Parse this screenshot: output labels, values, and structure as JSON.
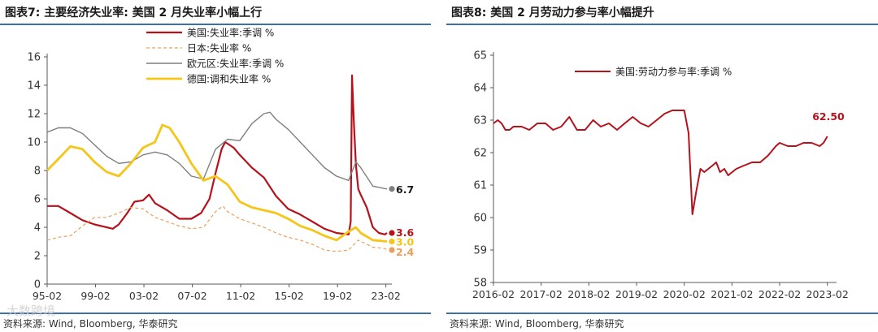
{
  "panels": {
    "left": {
      "title": "图表7:  主要经济失业率: 美国 2 月失业率小幅上行",
      "source": "资料来源: Wind, Bloomberg, 华泰研究"
    },
    "right": {
      "title": "图表8:  美国 2 月劳动力参与率小幅提升",
      "source": "资料来源: Wind, Bloomberg, 华泰研究"
    }
  },
  "watermark": "大数跨境",
  "colors": {
    "accent_rule": "#3d6fa8",
    "us": "#b5121b",
    "japan": "#e8a05c",
    "euro": "#7f7f7f",
    "germany": "#f5c518",
    "axis": "#595959",
    "title": "#1a1a1a"
  },
  "chart_data": [
    {
      "type": "line",
      "title": "",
      "xlabel": "",
      "ylabel": "",
      "xlim": [
        1995.08,
        2023.17
      ],
      "ylim": [
        0,
        16
      ],
      "yticks": [
        0,
        2,
        4,
        6,
        8,
        10,
        12,
        14,
        16
      ],
      "xtick_labels": [
        "95-02",
        "99-02",
        "03-02",
        "07-02",
        "11-02",
        "15-02",
        "19-02",
        "23-02"
      ],
      "xtick_values": [
        1995.08,
        1999.08,
        2003.08,
        2007.08,
        2011.08,
        2015.08,
        2019.08,
        2023.08
      ],
      "grid": false,
      "legend_position": "top-center",
      "series": [
        {
          "name": "美国:失业率:季调 %",
          "color": "#b5121b",
          "x": [
            1995.08,
            1996.0,
            1997.0,
            1998.0,
            1999.0,
            2000.0,
            2000.5,
            2001.0,
            2001.7,
            2002.3,
            2003.0,
            2003.5,
            2004.0,
            2005.0,
            2006.0,
            2007.0,
            2007.8,
            2008.5,
            2009.0,
            2009.5,
            2009.8,
            2010.5,
            2011.0,
            2012.0,
            2013.0,
            2014.0,
            2015.0,
            2016.0,
            2017.0,
            2018.0,
            2019.0,
            2020.0,
            2020.17,
            2020.28,
            2020.35,
            2020.45,
            2020.6,
            2020.8,
            2021.0,
            2021.5,
            2022.0,
            2022.5,
            2023.0,
            2023.17
          ],
          "y": [
            5.5,
            5.5,
            5.0,
            4.5,
            4.2,
            4.0,
            3.9,
            4.2,
            5.0,
            5.8,
            5.9,
            6.3,
            5.7,
            5.2,
            4.6,
            4.6,
            5.0,
            6.0,
            7.8,
            9.5,
            10.0,
            9.6,
            9.1,
            8.2,
            7.5,
            6.2,
            5.3,
            4.9,
            4.4,
            3.9,
            3.6,
            3.5,
            4.4,
            14.7,
            13.2,
            11.1,
            8.4,
            6.7,
            6.3,
            5.4,
            4.0,
            3.6,
            3.5,
            3.6
          ]
        },
        {
          "name": "日本:失业率 %",
          "color": "#e8a05c",
          "x": [
            1995.08,
            1996.0,
            1997.0,
            1998.0,
            1999.0,
            2000.0,
            2001.0,
            2002.0,
            2003.0,
            2004.0,
            2005.0,
            2006.0,
            2007.0,
            2008.0,
            2009.0,
            2009.6,
            2010.0,
            2011.0,
            2012.0,
            2013.0,
            2014.0,
            2015.0,
            2016.0,
            2017.0,
            2018.0,
            2019.0,
            2020.0,
            2020.8,
            2021.5,
            2022.0,
            2023.0,
            2023.17
          ],
          "y": [
            3.1,
            3.3,
            3.4,
            4.1,
            4.7,
            4.7,
            5.0,
            5.4,
            5.3,
            4.7,
            4.4,
            4.1,
            3.9,
            4.0,
            5.1,
            5.5,
            5.1,
            4.6,
            4.3,
            4.0,
            3.6,
            3.3,
            3.1,
            2.8,
            2.4,
            2.3,
            2.4,
            3.1,
            2.8,
            2.6,
            2.5,
            2.4
          ]
        },
        {
          "name": "欧元区:失业率:季调 %",
          "color": "#7f7f7f",
          "x": [
            1995.08,
            1996.0,
            1997.0,
            1998.0,
            1999.0,
            2000.0,
            2001.0,
            2002.0,
            2003.0,
            2004.0,
            2005.0,
            2006.0,
            2007.0,
            2008.0,
            2009.0,
            2010.0,
            2011.0,
            2012.0,
            2013.0,
            2013.5,
            2014.0,
            2015.0,
            2016.0,
            2017.0,
            2018.0,
            2019.0,
            2020.0,
            2020.6,
            2021.0,
            2022.0,
            2023.17
          ],
          "y": [
            10.7,
            11.0,
            11.0,
            10.6,
            9.8,
            9.0,
            8.5,
            8.6,
            9.1,
            9.3,
            9.1,
            8.5,
            7.6,
            7.4,
            9.5,
            10.2,
            10.1,
            11.3,
            12.0,
            12.1,
            11.6,
            10.9,
            10.0,
            9.1,
            8.2,
            7.6,
            7.3,
            8.6,
            8.2,
            6.9,
            6.7
          ]
        },
        {
          "name": "德国:调和失业率 %",
          "color": "#f5c518",
          "x": [
            1995.08,
            1996.0,
            1997.0,
            1998.0,
            1999.0,
            2000.0,
            2001.0,
            2002.0,
            2003.0,
            2004.0,
            2004.6,
            2005.2,
            2006.0,
            2007.0,
            2008.0,
            2009.0,
            2010.0,
            2011.0,
            2012.0,
            2013.0,
            2014.0,
            2015.0,
            2016.0,
            2017.0,
            2018.0,
            2019.0,
            2020.0,
            2020.6,
            2021.0,
            2022.0,
            2023.17
          ],
          "y": [
            8.0,
            8.8,
            9.7,
            9.5,
            8.6,
            7.9,
            7.6,
            8.5,
            9.6,
            10.0,
            11.2,
            11.0,
            10.0,
            8.5,
            7.3,
            7.6,
            7.0,
            5.8,
            5.4,
            5.2,
            5.0,
            4.6,
            4.1,
            3.8,
            3.4,
            3.1,
            3.7,
            4.0,
            3.6,
            3.1,
            3.0
          ]
        }
      ],
      "end_labels": [
        {
          "text": "6.7",
          "value": 6.7,
          "color": "#1a1a1a"
        },
        {
          "text": "3.6",
          "value": 3.6,
          "color": "#b5121b"
        },
        {
          "text": "3.0",
          "value": 3.0,
          "color": "#f5c518"
        },
        {
          "text": "2.4",
          "value": 2.4,
          "color": "#e8a05c"
        }
      ]
    },
    {
      "type": "line",
      "title": "",
      "xlabel": "",
      "ylabel": "",
      "xlim": [
        2016.08,
        2023.17
      ],
      "ylim": [
        58,
        65
      ],
      "yticks": [
        58,
        59,
        60,
        61,
        62,
        63,
        64,
        65
      ],
      "xtick_labels": [
        "2016-02",
        "2017-02",
        "2018-02",
        "2019-02",
        "2020-02",
        "2021-02",
        "2022-02",
        "2023-02"
      ],
      "xtick_values": [
        2016.08,
        2017.08,
        2018.08,
        2019.08,
        2020.08,
        2021.08,
        2022.08,
        2023.08
      ],
      "grid": false,
      "legend_position": "top-left",
      "series": [
        {
          "name": "美国:劳动力参与率:季调 %",
          "color": "#b5121b",
          "x": [
            2016.08,
            2016.17,
            2016.25,
            2016.33,
            2016.42,
            2016.5,
            2016.67,
            2016.83,
            2017.0,
            2017.17,
            2017.33,
            2017.5,
            2017.67,
            2017.83,
            2018.0,
            2018.17,
            2018.33,
            2018.5,
            2018.67,
            2018.83,
            2019.0,
            2019.17,
            2019.33,
            2019.5,
            2019.67,
            2019.83,
            2020.0,
            2020.08,
            2020.17,
            2020.25,
            2020.33,
            2020.42,
            2020.5,
            2020.67,
            2020.75,
            2020.83,
            2020.92,
            2021.0,
            2021.17,
            2021.33,
            2021.5,
            2021.67,
            2021.83,
            2022.0,
            2022.08,
            2022.25,
            2022.42,
            2022.58,
            2022.75,
            2022.92,
            2023.0,
            2023.08
          ],
          "y": [
            62.9,
            63.0,
            62.9,
            62.7,
            62.7,
            62.8,
            62.8,
            62.7,
            62.9,
            62.9,
            62.7,
            62.8,
            63.1,
            62.7,
            62.7,
            63.0,
            62.8,
            62.9,
            62.7,
            62.9,
            63.1,
            62.9,
            62.8,
            63.0,
            63.2,
            63.3,
            63.3,
            63.3,
            62.6,
            60.1,
            60.8,
            61.5,
            61.4,
            61.6,
            61.7,
            61.4,
            61.5,
            61.3,
            61.5,
            61.6,
            61.7,
            61.7,
            61.9,
            62.2,
            62.3,
            62.2,
            62.2,
            62.3,
            62.3,
            62.2,
            62.3,
            62.5
          ]
        }
      ],
      "end_labels": [
        {
          "text": "62.50",
          "value": 62.5,
          "color": "#b5121b"
        }
      ]
    }
  ]
}
